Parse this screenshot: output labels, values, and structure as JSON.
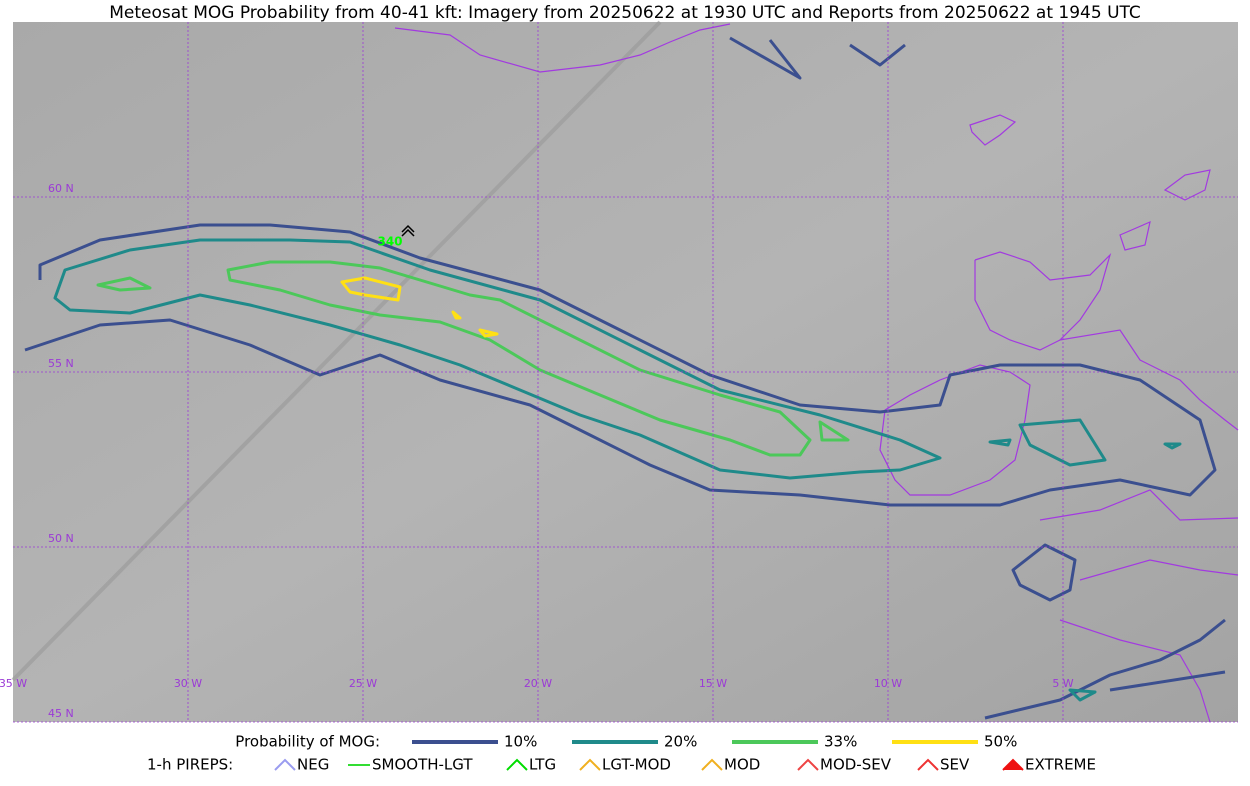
{
  "title": "Meteosat MOG Probability from 40-41 kft: Imagery from 20250622 at 1930 UTC and Reports from 20250622 at 1945 UTC",
  "lat_labels": [
    "60 N",
    "55 N",
    "50 N",
    "45 N"
  ],
  "lon_labels": [
    "35 W",
    "30 W",
    "25 W",
    "20 W",
    "15 W",
    "10 W",
    "5 W"
  ],
  "report": {
    "label": "340",
    "color": "#00ff00"
  },
  "legend": {
    "title": "Probability of MOG:",
    "items": [
      {
        "label": "10%",
        "color": "#3b4f8f"
      },
      {
        "label": "20%",
        "color": "#1f8a8a"
      },
      {
        "label": "33%",
        "color": "#4cc85a"
      },
      {
        "label": "50%",
        "color": "#ffe014"
      }
    ]
  },
  "pireps": {
    "title": "1-h PIREPS:",
    "items": [
      {
        "label": "NEG",
        "color": "#9a9cf0"
      },
      {
        "label": "SMOOTH-LGT",
        "color": "#33dd33"
      },
      {
        "label": "LTG",
        "color": "#00dd00"
      },
      {
        "label": "LGT-MOD",
        "color": "#f0b020"
      },
      {
        "label": "MOD",
        "color": "#f0b020"
      },
      {
        "label": "MOD-SEV",
        "color": "#ee4444"
      },
      {
        "label": "SEV",
        "color": "#ee3333"
      },
      {
        "label": "EXTREME",
        "color": "#ee1111"
      }
    ]
  }
}
